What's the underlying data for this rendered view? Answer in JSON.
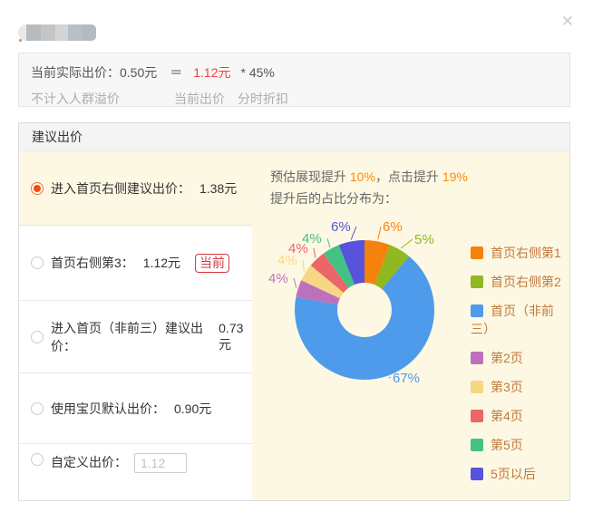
{
  "dialog": {
    "close_icon": "✕"
  },
  "notice": {
    "line1": {
      "label": "当前实际出价：0.50元",
      "equals": "＝",
      "current_bid": "1.12元",
      "multiplier": "* 45%"
    },
    "line2": {
      "no_crowd_premium": "不计入人群溢价",
      "current_bid_label": "当前出价",
      "time_discount_label": "分时折扣"
    }
  },
  "panel": {
    "header": "建议出价",
    "options": [
      {
        "label": "进入首页右侧建议出价：",
        "value": "1.38元",
        "selected": true
      },
      {
        "label": "首页右侧第3：",
        "value": "1.12元",
        "badge": "当前",
        "selected": false
      },
      {
        "label": "进入首页（非前三）建议出价：",
        "value": "0.73元",
        "selected": false
      },
      {
        "label": "使用宝贝默认出价：",
        "value": "0.90元",
        "selected": false
      },
      {
        "label": "自定义出价：",
        "input_value": "1.12",
        "selected": false
      }
    ],
    "estimate": {
      "prefix": "预估展现提升 ",
      "impression_lift": "10%",
      "middle": "，点击提升 ",
      "click_lift": "19%",
      "line2": "提升后的占比分布为："
    }
  },
  "chart_data": {
    "type": "pie",
    "donut": true,
    "title": "提升后的占比分布",
    "legend_position": "right",
    "start_angle": "top, clockwise",
    "segments": [
      {
        "label": "首页右侧第1",
        "value": 6,
        "color": "#f5820d"
      },
      {
        "label": "首页右侧第2",
        "value": 5,
        "color": "#8fb821"
      },
      {
        "label": "首页（非前三）",
        "value": 67,
        "color": "#4d9bea"
      },
      {
        "label": "第2页",
        "value": 4,
        "color": "#bd71bd"
      },
      {
        "label": "第3页",
        "value": 4,
        "color": "#f7d784"
      },
      {
        "label": "第4页",
        "value": 4,
        "color": "#ec6567"
      },
      {
        "label": "第5页",
        "value": 4,
        "color": "#44c285"
      },
      {
        "label": "5页以后",
        "value": 6,
        "color": "#5753dd"
      }
    ]
  },
  "colors": {
    "accent_orange": "#ff8a00",
    "price_red": "#f53c3c",
    "badge_red": "#d5393e",
    "selected_radio_orange": "#f5731e",
    "panel_cream": "#fdf8e3",
    "legend_text": "#bf7a3f"
  }
}
